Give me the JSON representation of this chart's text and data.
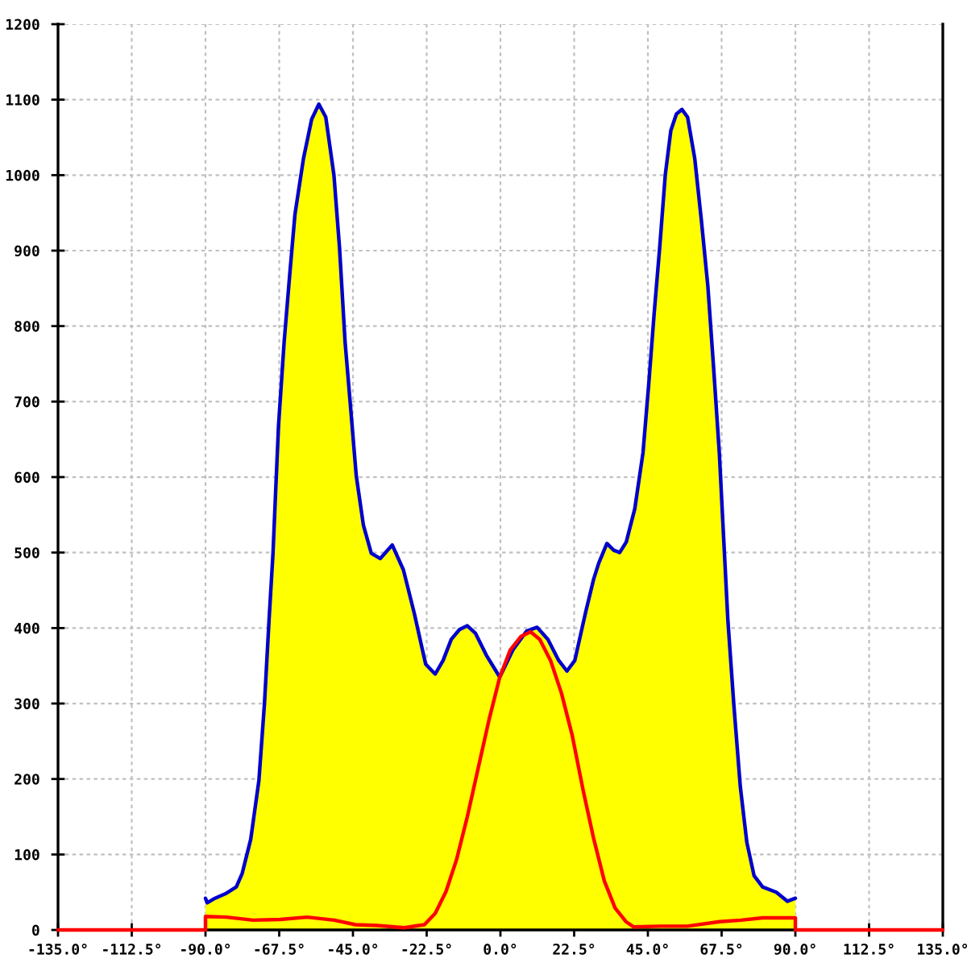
{
  "chart_data": {
    "type": "area",
    "xlim": [
      -135,
      135
    ],
    "ylim": [
      0,
      1200
    ],
    "xticks": [
      {
        "value": -135,
        "label": "-135.0°"
      },
      {
        "value": -112.5,
        "label": "-112.5°"
      },
      {
        "value": -90,
        "label": "-90.0°"
      },
      {
        "value": -67.5,
        "label": "-67.5°"
      },
      {
        "value": -45,
        "label": "-45.0°"
      },
      {
        "value": -22.5,
        "label": "-22.5°"
      },
      {
        "value": 0,
        "label": "0.0°"
      },
      {
        "value": 22.5,
        "label": "22.5°"
      },
      {
        "value": 45,
        "label": "45.0°"
      },
      {
        "value": 67.5,
        "label": "67.5°"
      },
      {
        "value": 90,
        "label": "90.0°"
      },
      {
        "value": 112.5,
        "label": "112.5°"
      },
      {
        "value": 135,
        "label": "135.0°"
      }
    ],
    "yticks": [
      0,
      100,
      200,
      300,
      400,
      500,
      600,
      700,
      800,
      900,
      1000,
      1100,
      1200
    ],
    "grid": true,
    "series": [
      {
        "color": "#ffff00",
        "x": [
          -90,
          -90,
          -89.5,
          -87.1,
          -83.9,
          -80.6,
          -78.8,
          -76.2,
          -73.7,
          -72.0,
          -70.6,
          -69.4,
          -68.6,
          -67.7,
          -66.0,
          -64.3,
          -62.7,
          -60.1,
          -57.6,
          -55.4,
          -53.3,
          -50.8,
          -49.1,
          -47.4,
          -45.7,
          -44.0,
          -41.8,
          -39.4,
          -36.7,
          -33.0,
          -29.6,
          -26.2,
          -24.0,
          -22.8,
          -19.9,
          -17.5,
          -15.0,
          -12.5,
          -10.1,
          -7.6,
          -4.3,
          -0.2,
          3.8,
          8.0,
          11.2,
          14.5,
          17.8,
          20.3,
          22.7,
          26.0,
          28.4,
          30.0,
          32.5,
          34.6,
          36.4,
          38.4,
          41.0,
          43.5,
          45.2,
          46.9,
          48.6,
          50.3,
          52.0,
          53.7,
          55.4,
          57.1,
          59.3,
          61.3,
          63.3,
          65.1,
          66.8,
          68.1,
          69.4,
          71.2,
          73.2,
          75.2,
          77.4,
          80.0,
          84.2,
          87.6,
          90,
          90
        ],
        "values": [
          0,
          42,
          36,
          42,
          48,
          57,
          75,
          120,
          198,
          300,
          411,
          499,
          580,
          669,
          779,
          868,
          948,
          1022,
          1074,
          1094,
          1077,
          1000,
          904,
          779,
          691,
          602,
          536,
          499,
          492,
          510,
          477,
          418,
          375,
          352,
          339,
          357,
          385,
          398,
          403,
          393,
          364,
          335,
          371,
          396,
          401,
          385,
          357,
          343,
          357,
          421,
          464,
          486,
          512,
          503,
          500,
          514,
          558,
          632,
          720,
          816,
          904,
          1000,
          1059,
          1081,
          1087,
          1077,
          1022,
          941,
          853,
          742,
          632,
          521,
          411,
          300,
          190,
          116,
          72,
          57,
          50,
          38,
          42,
          0
        ]
      },
      {
        "type": "line",
        "color": "#0000cc",
        "x": [
          -90,
          -89.5,
          -87.1,
          -83.9,
          -80.6,
          -78.8,
          -76.2,
          -73.7,
          -72.0,
          -70.6,
          -69.4,
          -68.6,
          -67.7,
          -66.0,
          -64.3,
          -62.7,
          -60.1,
          -57.6,
          -55.4,
          -53.3,
          -50.8,
          -49.1,
          -47.4,
          -45.7,
          -44.0,
          -41.8,
          -39.4,
          -36.7,
          -33.0,
          -29.6,
          -26.2,
          -24.0,
          -22.8,
          -19.9,
          -17.5,
          -15.0,
          -12.5,
          -10.1,
          -7.6,
          -4.3,
          -0.2,
          3.8,
          8.0,
          11.2,
          14.5,
          17.8,
          20.3,
          22.7,
          26.0,
          28.4,
          30.0,
          32.5,
          34.6,
          36.4,
          38.4,
          41.0,
          43.5,
          45.2,
          46.9,
          48.6,
          50.3,
          52.0,
          53.7,
          55.4,
          57.1,
          59.3,
          61.3,
          63.3,
          65.1,
          66.8,
          68.1,
          69.4,
          71.2,
          73.2,
          75.2,
          77.4,
          80.0,
          84.2,
          87.6,
          90
        ],
        "values": [
          42,
          36,
          42,
          48,
          57,
          75,
          120,
          198,
          300,
          411,
          499,
          580,
          669,
          779,
          868,
          948,
          1022,
          1074,
          1094,
          1077,
          1000,
          904,
          779,
          691,
          602,
          536,
          499,
          492,
          510,
          477,
          418,
          375,
          352,
          339,
          357,
          385,
          398,
          403,
          393,
          364,
          335,
          371,
          396,
          401,
          385,
          357,
          343,
          357,
          421,
          464,
          486,
          512,
          503,
          500,
          514,
          558,
          632,
          720,
          816,
          904,
          1000,
          1059,
          1081,
          1087,
          1077,
          1022,
          941,
          853,
          742,
          632,
          521,
          411,
          300,
          190,
          116,
          72,
          57,
          50,
          38,
          42
        ]
      },
      {
        "type": "line",
        "color": "#ff0000",
        "x": [
          -135,
          -90,
          -90,
          -83.6,
          -75.4,
          -67.2,
          -59.0,
          -50.7,
          -44.2,
          -37.6,
          -29.4,
          -23.2,
          -19.9,
          -16.6,
          -13.4,
          -10.1,
          -6.8,
          -3.5,
          -0.2,
          3.0,
          6.3,
          9.2,
          12.0,
          15.3,
          18.6,
          21.9,
          25.2,
          28.4,
          31.7,
          35.0,
          38.3,
          40.7,
          48.9,
          57.0,
          66.9,
          73.4,
          80.0,
          89.0,
          90,
          90,
          135
        ],
        "values": [
          0,
          0,
          18,
          17,
          13,
          14,
          17,
          13,
          7,
          6,
          3,
          7,
          22,
          51,
          93,
          150,
          214,
          278,
          335,
          371,
          389,
          395,
          385,
          357,
          314,
          258,
          186,
          122,
          65,
          29,
          11,
          4,
          5,
          5,
          11,
          13,
          16,
          16,
          16,
          0,
          0
        ]
      }
    ]
  }
}
